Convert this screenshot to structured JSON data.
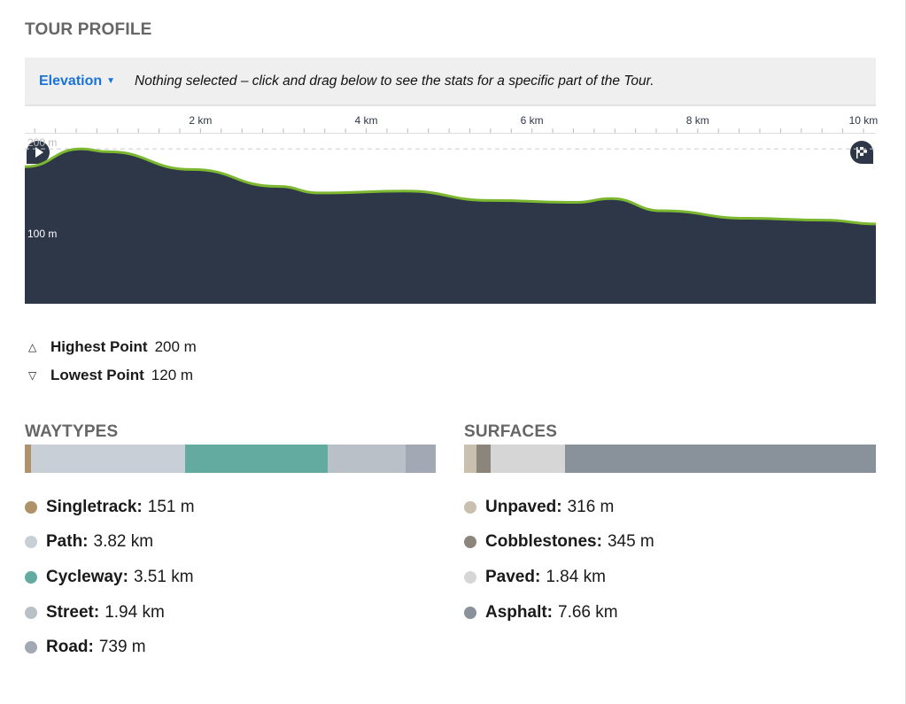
{
  "title": "TOUR PROFILE",
  "header": {
    "dropdown_label": "Elevation",
    "hint": "Nothing selected – click and drag below to see the stats for a specific part of the Tour."
  },
  "chart_data": {
    "type": "area",
    "x_ticks": [
      "2 km",
      "4 km",
      "6 km",
      "8 km",
      "10 km"
    ],
    "x_tick_values": [
      2,
      4,
      6,
      8,
      10
    ],
    "y_labels": [
      "200 m",
      "100 m"
    ],
    "y_label_values": [
      200,
      100
    ],
    "xlim": [
      -0.12,
      10.15
    ],
    "ylim": [
      35,
      235
    ],
    "x": [
      0.12,
      0.56,
      0.87,
      1.9,
      2.93,
      3.44,
      4.47,
      5.5,
      6.54,
      6.95,
      7.57,
      8.6,
      9.53,
      10.15
    ],
    "y": [
      181,
      200,
      197,
      178,
      160,
      153,
      155,
      145,
      143,
      147,
      134,
      126,
      124,
      120
    ],
    "fill": "#2d3748",
    "line": "#7cb82f"
  },
  "stats": {
    "highest_label": "Highest Point",
    "highest_value": "200 m",
    "lowest_label": "Lowest Point",
    "lowest_value": "120 m"
  },
  "waytypes": {
    "title": "WAYTYPES",
    "items": [
      {
        "label": "Singletrack:",
        "value": "151 m",
        "meters": 151,
        "color": "#b0926a"
      },
      {
        "label": "Path:",
        "value": "3.82 km",
        "meters": 3820,
        "color": "#c8cfd6"
      },
      {
        "label": "Cycleway:",
        "value": "3.51 km",
        "meters": 3510,
        "color": "#63aba1"
      },
      {
        "label": "Street:",
        "value": "1.94 km",
        "meters": 1940,
        "color": "#bac0c7"
      },
      {
        "label": "Road:",
        "value": "739 m",
        "meters": 739,
        "color": "#a3a9b4"
      }
    ]
  },
  "surfaces": {
    "title": "SURFACES",
    "items": [
      {
        "label": "Unpaved:",
        "value": "316 m",
        "meters": 316,
        "color": "#c9c0b0"
      },
      {
        "label": "Cobblestones:",
        "value": "345 m",
        "meters": 345,
        "color": "#8c857c"
      },
      {
        "label": "Paved:",
        "value": "1.84 km",
        "meters": 1840,
        "color": "#d6d6d6"
      },
      {
        "label": "Asphalt:",
        "value": "7.66 km",
        "meters": 7660,
        "color": "#89919b"
      }
    ]
  }
}
